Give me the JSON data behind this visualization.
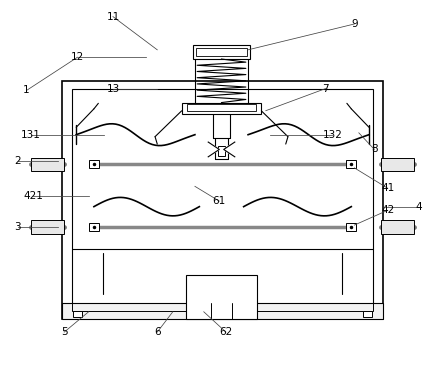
{
  "bg_color": "#ffffff",
  "line_color": "#000000",
  "figsize": [
    4.43,
    3.69
  ],
  "dpi": 100,
  "ann_lines": [
    [
      "11",
      [
        0.255,
        0.955
      ],
      [
        0.355,
        0.865
      ]
    ],
    [
      "12",
      [
        0.175,
        0.845
      ],
      [
        0.33,
        0.845
      ]
    ],
    [
      "13",
      [
        0.255,
        0.76
      ],
      [
        0.355,
        0.76
      ]
    ],
    [
      "131",
      [
        0.07,
        0.635
      ],
      [
        0.235,
        0.635
      ]
    ],
    [
      "132",
      [
        0.75,
        0.635
      ],
      [
        0.61,
        0.635
      ]
    ],
    [
      "1",
      [
        0.06,
        0.755
      ],
      [
        0.175,
        0.845
      ]
    ],
    [
      "2",
      [
        0.04,
        0.565
      ],
      [
        0.13,
        0.565
      ]
    ],
    [
      "3",
      [
        0.04,
        0.385
      ],
      [
        0.13,
        0.385
      ]
    ],
    [
      "4",
      [
        0.945,
        0.44
      ],
      [
        0.87,
        0.44
      ]
    ],
    [
      "41",
      [
        0.875,
        0.49
      ],
      [
        0.8,
        0.545
      ]
    ],
    [
      "42",
      [
        0.875,
        0.43
      ],
      [
        0.8,
        0.39
      ]
    ],
    [
      "421",
      [
        0.075,
        0.47
      ],
      [
        0.2,
        0.47
      ]
    ],
    [
      "5",
      [
        0.145,
        0.1
      ],
      [
        0.2,
        0.155
      ]
    ],
    [
      "6",
      [
        0.355,
        0.1
      ],
      [
        0.39,
        0.155
      ]
    ],
    [
      "61",
      [
        0.495,
        0.455
      ],
      [
        0.44,
        0.495
      ]
    ],
    [
      "62",
      [
        0.51,
        0.1
      ],
      [
        0.46,
        0.155
      ]
    ],
    [
      "7",
      [
        0.735,
        0.76
      ],
      [
        0.6,
        0.7
      ]
    ],
    [
      "8",
      [
        0.845,
        0.595
      ],
      [
        0.81,
        0.64
      ]
    ],
    [
      "9",
      [
        0.8,
        0.935
      ],
      [
        0.56,
        0.865
      ]
    ]
  ]
}
